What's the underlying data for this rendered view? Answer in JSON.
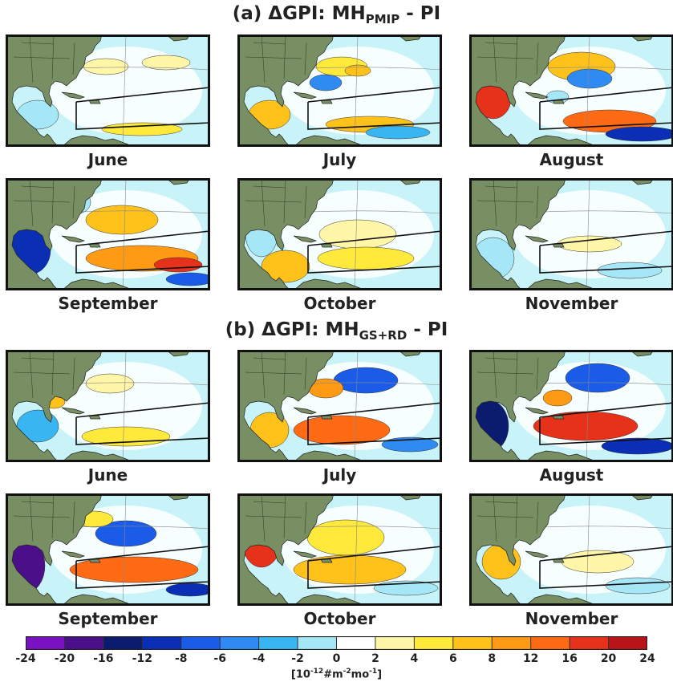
{
  "sections": [
    {
      "title_prefix": "(a) ΔGPI: MH",
      "title_sub": "PMIP",
      "title_suffix": " - PI",
      "panels": [
        {
          "month": "June",
          "pattern": "a_jun"
        },
        {
          "month": "July",
          "pattern": "a_jul"
        },
        {
          "month": "August",
          "pattern": "a_aug"
        },
        {
          "month": "September",
          "pattern": "a_sep"
        },
        {
          "month": "October",
          "pattern": "a_oct"
        },
        {
          "month": "November",
          "pattern": "a_nov"
        }
      ]
    },
    {
      "title_prefix": "(b) ΔGPI: MH",
      "title_sub": "GS+RD",
      "title_suffix": " - PI",
      "panels": [
        {
          "month": "June",
          "pattern": "b_jun"
        },
        {
          "month": "July",
          "pattern": "b_jul"
        },
        {
          "month": "August",
          "pattern": "b_aug"
        },
        {
          "month": "September",
          "pattern": "b_sep"
        },
        {
          "month": "October",
          "pattern": "b_oct"
        },
        {
          "month": "November",
          "pattern": "b_nov"
        }
      ]
    }
  ],
  "colorbar": {
    "ticks": [
      "-24",
      "-20",
      "-16",
      "-12",
      "-8",
      "-6",
      "-4",
      "-2",
      "0",
      "2",
      "4",
      "6",
      "8",
      "12",
      "16",
      "20",
      "24"
    ],
    "colors": [
      "#7a12c4",
      "#4b0f8a",
      "#0b1c6e",
      "#0a2fb5",
      "#1a5ce8",
      "#2f8bf2",
      "#39b6f2",
      "#a6e7f7",
      "#ffffff",
      "#fff6a8",
      "#ffe93a",
      "#ffc21a",
      "#ff9a14",
      "#ff6a14",
      "#e6321a",
      "#b8141a"
    ],
    "unit_base": "[10",
    "unit_exp1": "-12",
    "unit_mid": "#m",
    "unit_exp2": "-2",
    "unit_mid2": "mo",
    "unit_exp3": "-1",
    "unit_end": "]"
  },
  "map_colors": {
    "land": "#778f63",
    "ocean": "#c8f3f8",
    "blank": "#ffffff"
  }
}
